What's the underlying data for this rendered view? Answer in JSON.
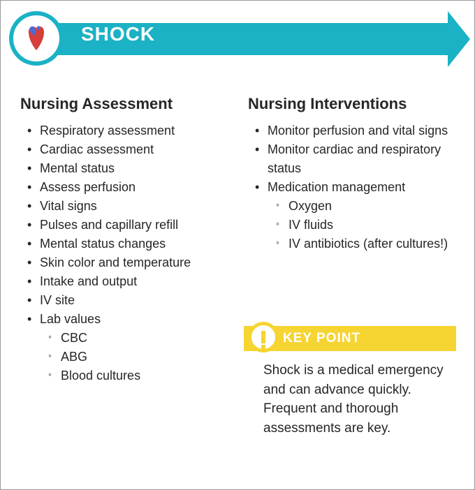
{
  "colors": {
    "arrow": "#1ab2c4",
    "keypoint": "#f6d431",
    "text": "#262626",
    "background": "#ffffff",
    "heart_red": "#d73f3a",
    "heart_blue": "#4a6bd8"
  },
  "typography": {
    "title_fontsize": 28,
    "heading_fontsize": 22,
    "body_fontsize": 18,
    "keypoint_fontsize": 19
  },
  "header": {
    "title": "SHOCK",
    "icon": "heart-anatomy-icon"
  },
  "columns": [
    {
      "heading": "Nursing Assessment",
      "items": [
        {
          "text": "Respiratory assessment"
        },
        {
          "text": "Cardiac assessment"
        },
        {
          "text": "Mental status"
        },
        {
          "text": "Assess perfusion"
        },
        {
          "text": "Vital signs"
        },
        {
          "text": "Pulses and capillary refill"
        },
        {
          "text": "Mental status changes"
        },
        {
          "text": "Skin color and temperature"
        },
        {
          "text": "Intake and output"
        },
        {
          "text": "IV site"
        },
        {
          "text": "Lab values",
          "sub": [
            {
              "text": "CBC"
            },
            {
              "text": "ABG"
            },
            {
              "text": "Blood cultures"
            }
          ]
        }
      ]
    },
    {
      "heading": "Nursing Interventions",
      "items": [
        {
          "text": "Monitor perfusion and vital signs"
        },
        {
          "text": "Monitor cardiac and respiratory status"
        },
        {
          "text": "Medication management",
          "sub": [
            {
              "text": "Oxygen"
            },
            {
              "text": "IV fluids"
            },
            {
              "text": "IV antibiotics (after cultures!)"
            }
          ]
        }
      ]
    }
  ],
  "keypoint": {
    "label": "KEY POINT",
    "body": "Shock is a medical emergency and can advance quickly. Frequent and thorough assessments are key."
  }
}
